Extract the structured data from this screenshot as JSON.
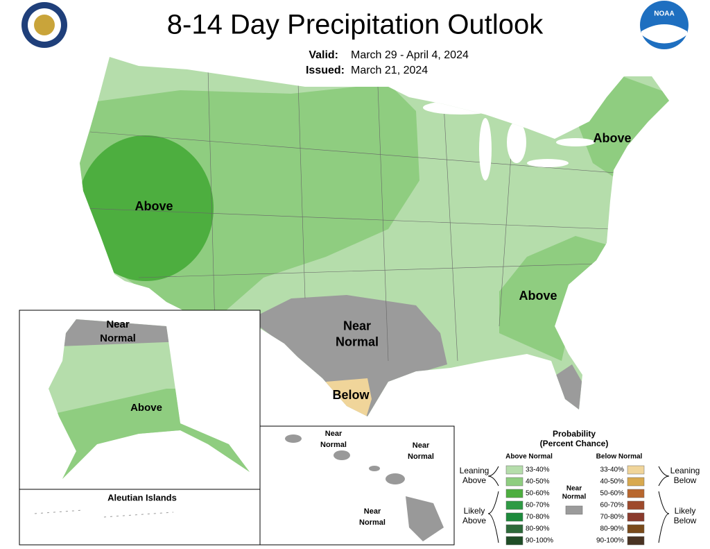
{
  "header": {
    "title": "8-14 Day Precipitation Outlook",
    "valid_label": "Valid:",
    "valid": "March 29 - April 4, 2024",
    "issued_label": "Issued:",
    "issued": "March 21, 2024",
    "noaa": "NOAA"
  },
  "map_labels": [
    {
      "lines": [
        "Above"
      ]
    },
    {
      "lines": [
        "Above"
      ]
    },
    {
      "lines": [
        "Above"
      ]
    },
    {
      "lines": [
        "Above"
      ]
    },
    {
      "lines": [
        "Near",
        "Normal"
      ]
    },
    {
      "lines": [
        "Near",
        "Normal"
      ]
    },
    {
      "lines": [
        "Below"
      ]
    },
    {
      "lines": [
        "Near",
        "Normal"
      ]
    },
    {
      "lines": [
        "Near",
        "Normal"
      ]
    },
    {
      "lines": [
        "Near",
        "Normal"
      ]
    }
  ],
  "insets": {
    "aleutian": "Aleutian Islands"
  },
  "legend": {
    "title": [
      "Probability",
      "(Percent Chance)"
    ],
    "above_header": "Above Normal",
    "below_header": "Below Normal",
    "above": [
      {
        "label": "33-40%",
        "color": "#b5ddab"
      },
      {
        "label": "40-50%",
        "color": "#8fcd80"
      },
      {
        "label": "50-60%",
        "color": "#4dae3f"
      },
      {
        "label": "60-70%",
        "color": "#2f9a44"
      },
      {
        "label": "70-80%",
        "color": "#1d8a3c"
      },
      {
        "label": "80-90%",
        "color": "#2d6a3a"
      },
      {
        "label": "90-100%",
        "color": "#1f4d27"
      }
    ],
    "below": [
      {
        "label": "33-40%",
        "color": "#f0d59a"
      },
      {
        "label": "40-50%",
        "color": "#d8a94f"
      },
      {
        "label": "50-60%",
        "color": "#b8672e"
      },
      {
        "label": "60-70%",
        "color": "#9e4a2c"
      },
      {
        "label": "70-80%",
        "color": "#8a3a2c"
      },
      {
        "label": "80-90%",
        "color": "#7a4a1a"
      },
      {
        "label": "90-100%",
        "color": "#4a3322"
      }
    ],
    "near": {
      "lines": [
        "Near",
        "Normal"
      ],
      "color": "#9b9b9b"
    },
    "leaning_above": [
      "Leaning",
      "Above"
    ],
    "likely_above": [
      "Likely",
      "Above"
    ],
    "leaning_below": [
      "Leaning",
      "Below"
    ],
    "likely_below": [
      "Likely",
      "Below"
    ]
  }
}
